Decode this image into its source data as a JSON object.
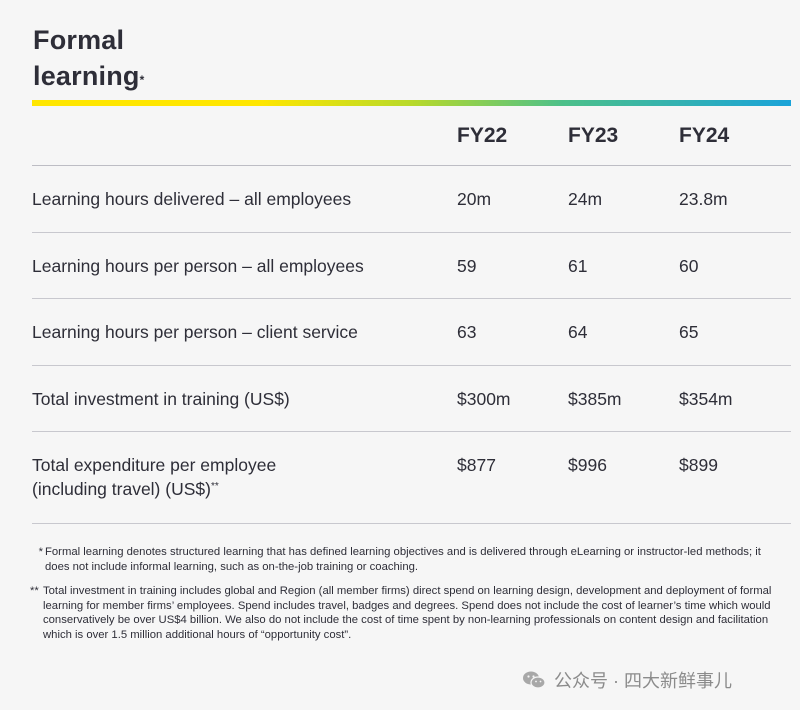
{
  "title": {
    "line1": "Formal",
    "line2": "learning",
    "mark": "*"
  },
  "columns": [
    "FY22",
    "FY23",
    "FY24"
  ],
  "rows": [
    {
      "label": "Learning hours delivered – all employees",
      "values": [
        "20m",
        "24m",
        "23.8m"
      ]
    },
    {
      "label": "Learning hours per person – all employees",
      "values": [
        "59",
        "61",
        "60"
      ]
    },
    {
      "label": "Learning hours per person – client service",
      "values": [
        "63",
        "64",
        "65"
      ]
    },
    {
      "label": "Total investment in training (US$)",
      "values": [
        "$300m",
        "$385m",
        "$354m"
      ]
    },
    {
      "label_line1": "Total expenditure per employee",
      "label_line2": "(including travel) (US$)",
      "mark": "**",
      "values": [
        "$877",
        "$996",
        "$899"
      ]
    }
  ],
  "notes": [
    {
      "mark": "*",
      "text": "Formal learning denotes structured learning that has defined learning objectives and is delivered through eLearning or instructor-led methods; it does not include informal learning, such as on-the-job training or coaching."
    },
    {
      "mark": "**",
      "text": "Total investment in training includes global and Region (all member firms) direct spend on learning design, development and deployment of formal learning for member firms’ employees. Spend includes travel, badges and degrees. Spend does not include the cost of learner’s time which would conservatively be over US$4 billion. We also do not include the cost of time spent by non-learning professionals on content design and facilitation which is over 1.5 million additional hours of “opportunity cost”."
    }
  ],
  "watermark": {
    "text": "公众号 · 四大新鲜事儿",
    "icon": "wechat-icon"
  },
  "colors": {
    "text": "#2e2e38",
    "accent_yellow": "#ffe600",
    "accent_blue": "#1aa3d9"
  }
}
